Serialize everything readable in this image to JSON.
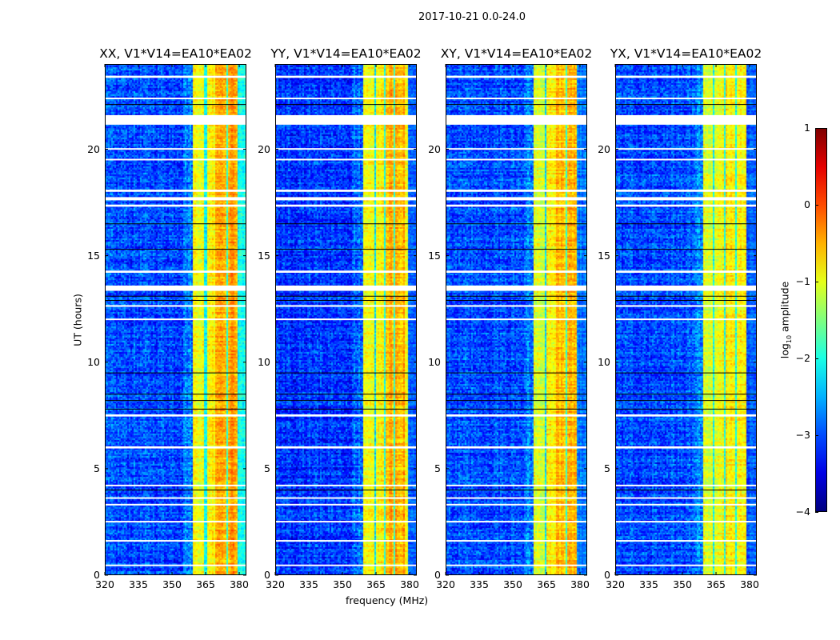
{
  "chart_data": {
    "type": "heatmap",
    "title": "2017-10-21 0.0-24.0",
    "xlabel": "frequency (MHz)",
    "ylabel": "UT (hours)",
    "xlim": [
      320,
      383.2
    ],
    "ylim": [
      0,
      24
    ],
    "xticks": [
      320,
      335,
      350,
      365,
      380
    ],
    "yticks": [
      0,
      5,
      10,
      15,
      20
    ],
    "colorbar": {
      "label_prefix": "log",
      "label_sub": "10",
      "label_suffix": " amplitude",
      "range": [
        -4,
        1
      ],
      "ticks": [
        1,
        0,
        -1,
        -2,
        -3,
        -4
      ],
      "colormap": "jet"
    },
    "panels": [
      {
        "title": "XX, V1*V14=EA10*EA02",
        "background_level": -3.0,
        "bands": [
          {
            "from": 359.6,
            "to": 364.6,
            "level": -0.9
          },
          {
            "from": 364.6,
            "to": 365.4,
            "level": -2.2
          },
          {
            "from": 365.4,
            "to": 369.6,
            "level": -0.8
          },
          {
            "from": 369.6,
            "to": 374.3,
            "level": -0.4
          },
          {
            "from": 374.3,
            "to": 375.3,
            "level": -2.0
          },
          {
            "from": 375.3,
            "to": 379.2,
            "level": -0.4
          },
          {
            "from": 379.2,
            "to": 383.2,
            "level": -2.1
          }
        ]
      },
      {
        "title": "YY, V1*V14=EA10*EA02",
        "background_level": -3.1,
        "bands": [
          {
            "from": 359.6,
            "to": 364.0,
            "level": -0.9
          },
          {
            "from": 364.0,
            "to": 365.0,
            "level": -2.3
          },
          {
            "from": 365.0,
            "to": 368.6,
            "level": -0.9
          },
          {
            "from": 368.6,
            "to": 369.4,
            "level": -2.0
          },
          {
            "from": 369.4,
            "to": 373.0,
            "level": -0.5
          },
          {
            "from": 373.0,
            "to": 373.8,
            "level": -2.0
          },
          {
            "from": 373.8,
            "to": 377.5,
            "level": -0.5
          },
          {
            "from": 377.5,
            "to": 379.5,
            "level": -1.0
          },
          {
            "from": 379.5,
            "to": 383.2,
            "level": -2.9
          }
        ]
      },
      {
        "title": "XY, V1*V14=EA10*EA02",
        "background_level": -3.0,
        "bands": [
          {
            "from": 359.6,
            "to": 364.3,
            "level": -1.0
          },
          {
            "from": 364.3,
            "to": 365.0,
            "level": -2.2
          },
          {
            "from": 365.0,
            "to": 369.5,
            "level": -0.8
          },
          {
            "from": 369.5,
            "to": 373.5,
            "level": -0.6
          },
          {
            "from": 373.5,
            "to": 374.3,
            "level": -1.8
          },
          {
            "from": 374.3,
            "to": 378.8,
            "level": -0.5
          },
          {
            "from": 378.8,
            "to": 383.2,
            "level": -2.8
          }
        ]
      },
      {
        "title": "YX, V1*V14=EA10*EA02",
        "background_level": -3.0,
        "bands": [
          {
            "from": 359.6,
            "to": 363.5,
            "level": -1.0
          },
          {
            "from": 363.5,
            "to": 364.5,
            "level": -2.0
          },
          {
            "from": 364.5,
            "to": 368.5,
            "level": -0.9
          },
          {
            "from": 368.5,
            "to": 369.5,
            "level": -1.9
          },
          {
            "from": 369.5,
            "to": 373.5,
            "level": -0.8
          },
          {
            "from": 373.5,
            "to": 374.3,
            "level": -2.0
          },
          {
            "from": 374.3,
            "to": 378.5,
            "level": -0.8
          },
          {
            "from": 378.5,
            "to": 383.2,
            "level": -2.9
          }
        ]
      }
    ],
    "flagged_hours": [
      [
        21.15,
        21.6
      ],
      [
        13.35,
        13.6
      ],
      [
        7.45,
        7.55
      ],
      [
        5.95,
        6.05
      ],
      [
        23.35,
        23.45
      ],
      [
        22.35,
        22.42
      ],
      [
        20.0,
        20.05
      ],
      [
        19.5,
        19.55
      ],
      [
        18.0,
        18.1
      ],
      [
        17.6,
        17.75
      ],
      [
        17.3,
        17.4
      ],
      [
        14.2,
        14.3
      ],
      [
        12.6,
        12.68
      ],
      [
        12.0,
        12.05
      ],
      [
        4.2,
        4.25
      ],
      [
        3.6,
        3.66
      ],
      [
        3.3,
        3.35
      ],
      [
        2.5,
        2.55
      ],
      [
        1.6,
        1.65
      ],
      [
        0.45,
        0.5
      ]
    ],
    "dark_lines_hours": [
      22.1,
      16.5,
      15.3,
      13.1,
      12.9,
      9.5,
      8.5,
      8.2,
      7.8,
      4.0
    ]
  }
}
